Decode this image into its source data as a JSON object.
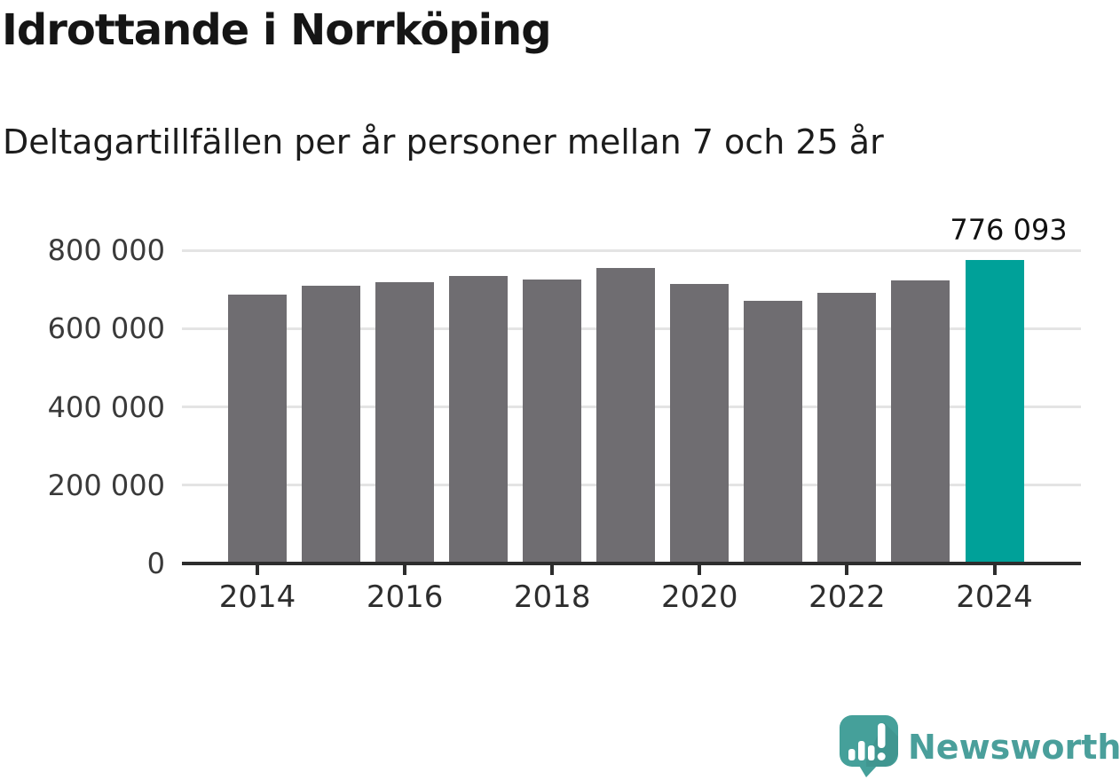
{
  "header": {
    "title": "Idrottande i Norrköping",
    "subtitle": "Deltagartillfällen per år personer mellan 7 och 25 år"
  },
  "chart_data": {
    "type": "bar",
    "title": "Idrottande i Norrköping",
    "subtitle": "Deltagartillfällen per år personer mellan 7 och 25 år",
    "categories": [
      2014,
      2015,
      2016,
      2017,
      2018,
      2019,
      2020,
      2021,
      2022,
      2023,
      2024
    ],
    "values": [
      687000,
      709000,
      718000,
      734000,
      725000,
      755000,
      714000,
      671000,
      692000,
      722000,
      776093
    ],
    "highlight_index": 10,
    "highlight_label": "776 093",
    "ylim": [
      0,
      800000
    ],
    "yticks": [
      0,
      200000,
      400000,
      600000,
      800000
    ],
    "ytick_labels": [
      "0",
      "200 000",
      "400 000",
      "600 000",
      "800 000"
    ],
    "xtick_labels": [
      "2014",
      "2016",
      "2018",
      "2020",
      "2022",
      "2024"
    ],
    "xlabel": "",
    "ylabel": "",
    "grid": true,
    "legend_position": "none",
    "bar_color": "#6f6d71",
    "highlight_color": "#00a199",
    "gridline_color": "#e4e4e4",
    "axis_color": "#2d2d2d"
  },
  "footer": {
    "brand": "Newsworthy",
    "brand_color": "#4a9f9b",
    "logo_color": "#45a09a"
  }
}
